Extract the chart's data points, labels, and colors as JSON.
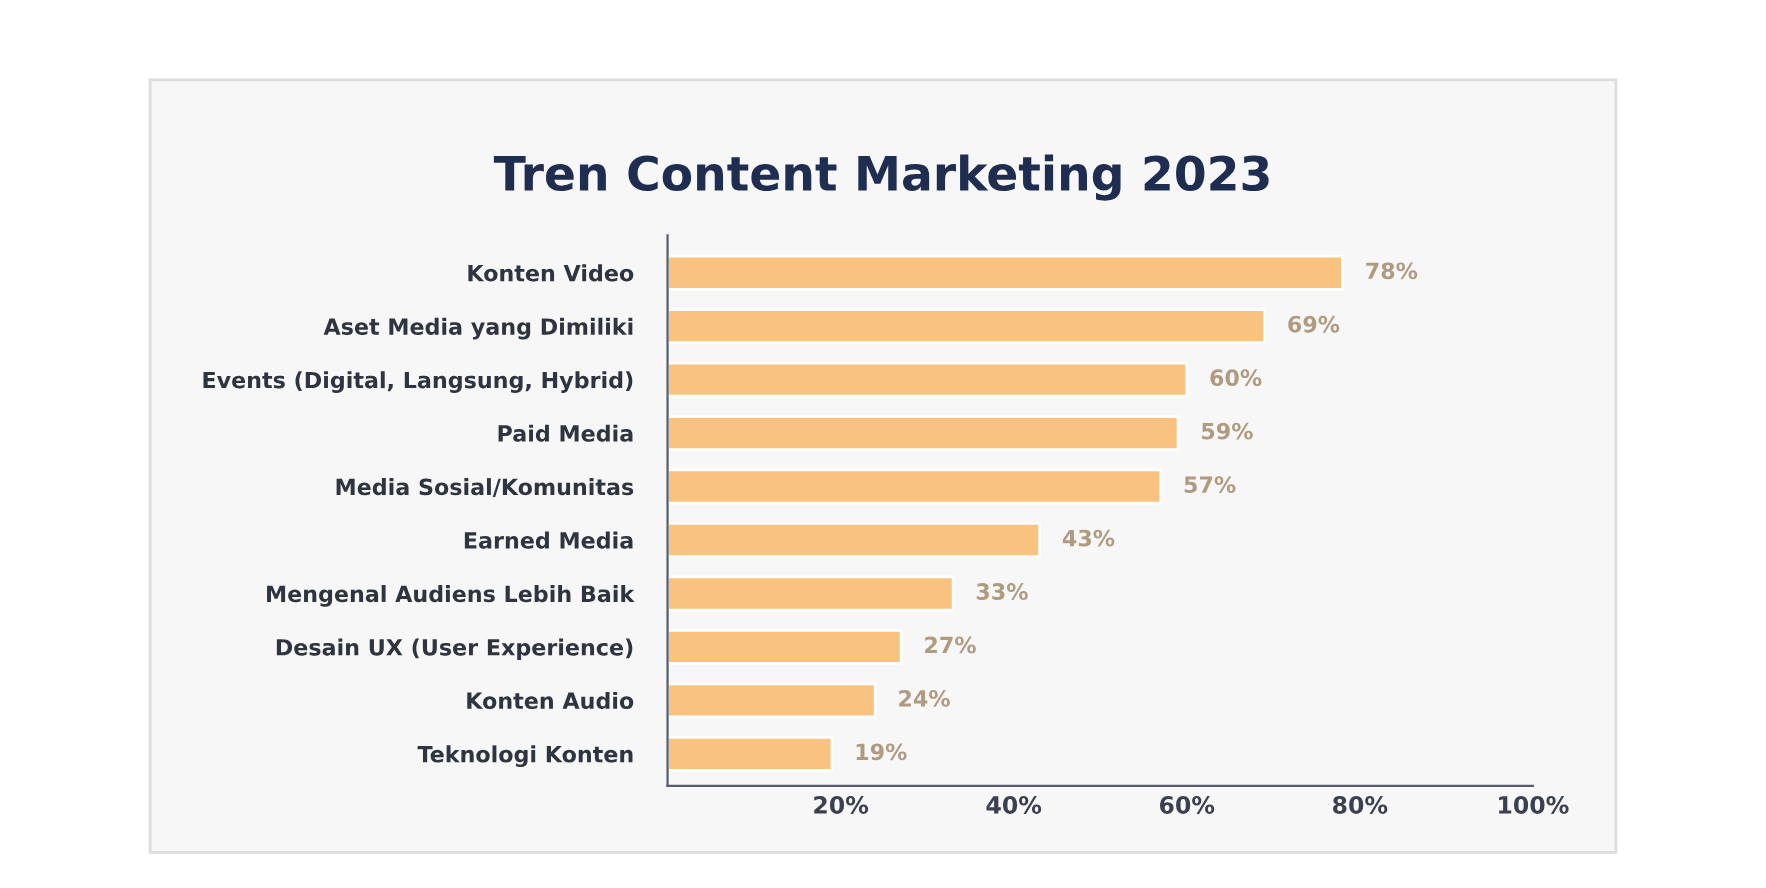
{
  "chart_data": {
    "type": "bar",
    "orientation": "horizontal",
    "title": "Tren Content Marketing 2023",
    "categories": [
      "Konten Video",
      "Aset Media yang Dimiliki",
      "Events (Digital, Langsung, Hybrid)",
      "Paid Media",
      "Media Sosial/Komunitas",
      "Earned Media",
      "Mengenal Audiens Lebih Baik",
      "Desain UX (User Experience)",
      "Konten Audio",
      "Teknologi Konten"
    ],
    "values": [
      78,
      69,
      60,
      59,
      57,
      43,
      33,
      27,
      24,
      19
    ],
    "value_labels": [
      "78%",
      "69%",
      "60%",
      "59%",
      "57%",
      "43%",
      "33%",
      "27%",
      "24%",
      "19%"
    ],
    "color": "#f9c27f",
    "xlim": [
      0,
      100
    ],
    "xticks": [
      {
        "value": 20,
        "label": "20%"
      },
      {
        "value": 40,
        "label": "40%"
      },
      {
        "value": 60,
        "label": "60%"
      },
      {
        "value": 80,
        "label": "80%"
      },
      {
        "value": 100,
        "label": "100%"
      }
    ],
    "grid": false,
    "legend": false
  }
}
